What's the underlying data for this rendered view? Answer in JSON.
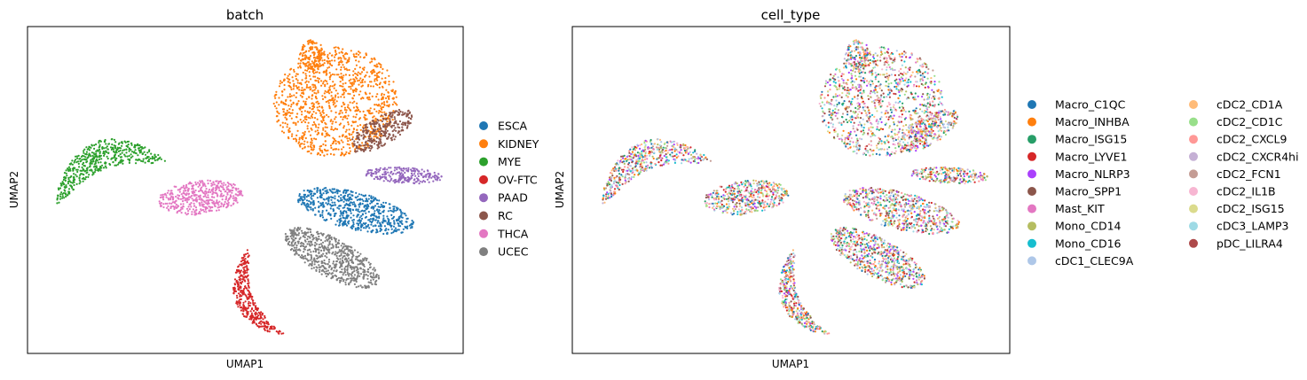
{
  "chart_data": [
    {
      "type": "scatter",
      "title": "batch",
      "xlabel": "UMAP1",
      "ylabel": "UMAP2",
      "ticks": false,
      "legend_position": "right",
      "legend": [
        {
          "label": "ESCA",
          "color": "#1f77b4"
        },
        {
          "label": "KIDNEY",
          "color": "#ff7f0e"
        },
        {
          "label": "MYE",
          "color": "#2ca02c"
        },
        {
          "label": "OV-FTC",
          "color": "#d62728"
        },
        {
          "label": "PAAD",
          "color": "#9467bd"
        },
        {
          "label": "RC",
          "color": "#8c564b"
        },
        {
          "label": "THCA",
          "color": "#e377c2"
        },
        {
          "label": "UCEC",
          "color": "#7f7f7f"
        }
      ]
    },
    {
      "type": "scatter",
      "title": "cell_type",
      "xlabel": "UMAP1",
      "ylabel": "UMAP2",
      "ticks": false,
      "legend_position": "right",
      "legend_columns": 2,
      "legend": [
        {
          "label": "Macro_C1QC",
          "color": "#1f77b4"
        },
        {
          "label": "Macro_INHBA",
          "color": "#ff7f0e"
        },
        {
          "label": "Macro_ISG15",
          "color": "#279e68"
        },
        {
          "label": "Macro_LYVE1",
          "color": "#d62728"
        },
        {
          "label": "Macro_NLRP3",
          "color": "#aa40fc"
        },
        {
          "label": "Macro_SPP1",
          "color": "#8c564b"
        },
        {
          "label": "Mast_KIT",
          "color": "#e377c2"
        },
        {
          "label": "Mono_CD14",
          "color": "#b5bd61"
        },
        {
          "label": "Mono_CD16",
          "color": "#17becf"
        },
        {
          "label": "cDC1_CLEC9A",
          "color": "#aec7e8"
        },
        {
          "label": "cDC2_CD1A",
          "color": "#ffbb78"
        },
        {
          "label": "cDC2_CD1C",
          "color": "#98df8a"
        },
        {
          "label": "cDC2_CXCL9",
          "color": "#ff9896"
        },
        {
          "label": "cDC2_CXCR4hi",
          "color": "#c5b0d5"
        },
        {
          "label": "cDC2_FCN1",
          "color": "#c49c94"
        },
        {
          "label": "cDC2_IL1B",
          "color": "#f7b6d2"
        },
        {
          "label": "cDC2_ISG15",
          "color": "#dbdb8d"
        },
        {
          "label": "cDC3_LAMP3",
          "color": "#9edae5"
        },
        {
          "label": "pDC_LILRA4",
          "color": "#ad494a"
        }
      ]
    }
  ]
}
